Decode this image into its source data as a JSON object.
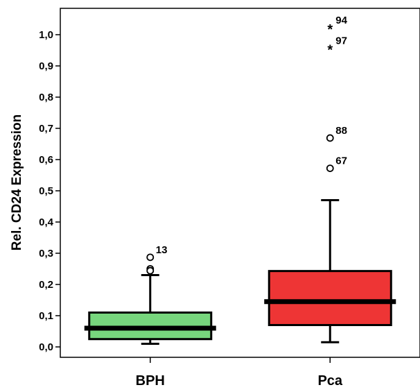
{
  "chart_data": {
    "type": "box",
    "title": "",
    "xlabel": "",
    "ylabel": "Rel. CD24 Expression",
    "ylim": [
      -0.04,
      1.1
    ],
    "y_ticks": [
      "0,0",
      "0,1",
      "0,2",
      "0,3",
      "0,4",
      "0,5",
      "0,6",
      "0,7",
      "0,8",
      "0,9",
      "1,0"
    ],
    "y_tick_values": [
      0.0,
      0.1,
      0.2,
      0.3,
      0.4,
      0.5,
      0.6,
      0.7,
      0.8,
      0.9,
      1.0
    ],
    "grid": false,
    "categories": [
      "BPH",
      "Pca"
    ],
    "boxes": [
      {
        "category": "BPH",
        "color": "#77d67d",
        "whisker_low": 0.01,
        "q1": 0.025,
        "median": 0.06,
        "q3": 0.11,
        "whisker_high": 0.23,
        "outliers": [
          {
            "value": 0.287,
            "marker": "circle",
            "label": "13"
          },
          {
            "value": 0.25,
            "marker": "circle",
            "label": ""
          },
          {
            "value": 0.244,
            "marker": "circle",
            "label": ""
          }
        ]
      },
      {
        "category": "Pca",
        "color": "#ee3535",
        "whisker_low": 0.015,
        "q1": 0.07,
        "median": 0.145,
        "q3": 0.243,
        "whisker_high": 0.47,
        "outliers": [
          {
            "value": 0.572,
            "marker": "circle",
            "label": "67"
          },
          {
            "value": 0.669,
            "marker": "circle",
            "label": "88"
          },
          {
            "value": 0.957,
            "marker": "star",
            "label": "97"
          },
          {
            "value": 1.022,
            "marker": "star",
            "label": "94"
          }
        ]
      }
    ]
  }
}
